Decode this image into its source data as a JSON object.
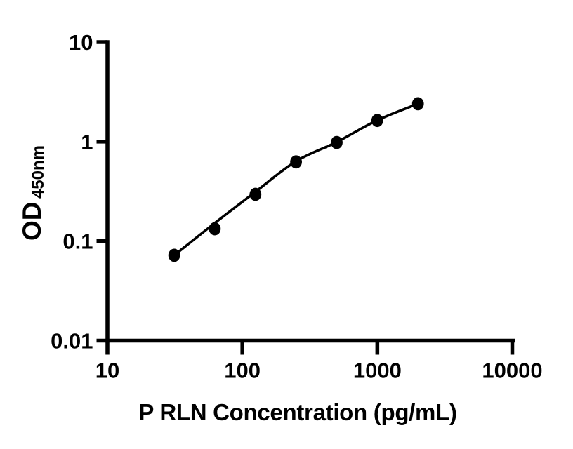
{
  "figure": {
    "background": "#ffffff",
    "ink_color": "#000000"
  },
  "chart_data": {
    "type": "scatter",
    "title": "",
    "xlabel": "P RLN Concentration (pg/mL)",
    "ylabel": "OD",
    "ylabel_subscript": "450nm",
    "x_scale": "log",
    "y_scale": "log",
    "xlim": [
      10,
      10000
    ],
    "ylim": [
      0.01,
      10
    ],
    "x_ticks": [
      10,
      100,
      1000,
      10000
    ],
    "x_tick_labels": [
      "10",
      "100",
      "1000",
      "10000"
    ],
    "y_ticks": [
      10,
      1,
      0.1,
      0.01
    ],
    "y_tick_labels": [
      "10",
      "1",
      "0.1",
      "0.01"
    ],
    "grid": false,
    "legend": null,
    "marker_color": "#000000",
    "line_color": "#000000",
    "series": [
      {
        "name": "standard-points",
        "type": "scatter",
        "marker": "filled-circle",
        "color": "#000000",
        "x": [
          31.25,
          62.5,
          125,
          250,
          500,
          1000,
          2000
        ],
        "y": [
          0.072,
          0.133,
          0.295,
          0.625,
          0.98,
          1.63,
          2.4
        ]
      },
      {
        "name": "fitted-curve",
        "type": "line",
        "color": "#000000",
        "x": [
          31.25,
          62.5,
          125,
          250,
          500,
          1000,
          2000
        ],
        "y": [
          0.072,
          0.152,
          0.313,
          0.635,
          0.99,
          1.64,
          2.4
        ]
      }
    ]
  }
}
